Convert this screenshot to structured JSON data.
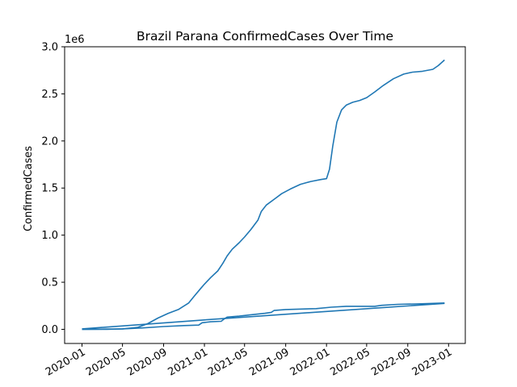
{
  "chart_data": {
    "type": "line",
    "title": "Brazil Parana ConfirmedCases Over Time",
    "xlabel": "",
    "ylabel": "ConfirmedCases",
    "y_offset_label": "1e6",
    "y_scale_multiplier": 1000000,
    "xlim": [
      "2019-11-10",
      "2023-02-20"
    ],
    "ylim": [
      -0.15,
      3.0
    ],
    "x_ticks": [
      {
        "date": "2020-01-01",
        "label": "2020-01"
      },
      {
        "date": "2020-05-01",
        "label": "2020-05"
      },
      {
        "date": "2020-09-01",
        "label": "2020-09"
      },
      {
        "date": "2021-01-01",
        "label": "2021-01"
      },
      {
        "date": "2021-05-01",
        "label": "2021-05"
      },
      {
        "date": "2021-09-01",
        "label": "2021-09"
      },
      {
        "date": "2022-01-01",
        "label": "2022-01"
      },
      {
        "date": "2022-05-01",
        "label": "2022-05"
      },
      {
        "date": "2022-09-01",
        "label": "2022-09"
      },
      {
        "date": "2023-01-01",
        "label": "2023-01"
      }
    ],
    "y_ticks": [
      {
        "value": 0.0,
        "label": "0.0"
      },
      {
        "value": 0.5,
        "label": "0.5"
      },
      {
        "value": 1.0,
        "label": "1.0"
      },
      {
        "value": 1.5,
        "label": "1.5"
      },
      {
        "value": 2.0,
        "label": "2.0"
      },
      {
        "value": 2.5,
        "label": "2.5"
      },
      {
        "value": 3.0,
        "label": "3.0"
      }
    ],
    "grid": false,
    "legend": "none",
    "line_color": "#1f77b4",
    "series": [
      {
        "points": [
          [
            "2020-01-01",
            0.0
          ],
          [
            "2020-03-15",
            0.0
          ],
          [
            "2020-05-01",
            0.005
          ],
          [
            "2020-06-15",
            0.02
          ],
          [
            "2020-07-15",
            0.06
          ],
          [
            "2020-08-15",
            0.12
          ],
          [
            "2020-09-15",
            0.17
          ],
          [
            "2020-10-15",
            0.21
          ],
          [
            "2020-11-15",
            0.28
          ],
          [
            "2020-12-01",
            0.35
          ],
          [
            "2020-12-20",
            0.43
          ],
          [
            "2021-01-01",
            0.48
          ],
          [
            "2021-01-20",
            0.55
          ],
          [
            "2021-02-10",
            0.62
          ],
          [
            "2021-02-25",
            0.7
          ],
          [
            "2021-03-10",
            0.78
          ],
          [
            "2021-03-25",
            0.85
          ],
          [
            "2021-04-15",
            0.92
          ],
          [
            "2021-05-01",
            0.98
          ],
          [
            "2021-05-20",
            1.06
          ],
          [
            "2021-06-10",
            1.16
          ],
          [
            "2021-06-20",
            1.25
          ],
          [
            "2021-07-05",
            1.32
          ],
          [
            "2021-08-01",
            1.39
          ],
          [
            "2021-08-20",
            1.44
          ],
          [
            "2021-09-15",
            1.49
          ],
          [
            "2021-10-15",
            1.54
          ],
          [
            "2021-11-15",
            1.57
          ],
          [
            "2021-12-15",
            1.59
          ],
          [
            "2022-01-01",
            1.6
          ],
          [
            "2022-01-10",
            1.7
          ],
          [
            "2022-01-20",
            1.95
          ],
          [
            "2022-02-01",
            2.2
          ],
          [
            "2022-02-15",
            2.33
          ],
          [
            "2022-03-01",
            2.38
          ],
          [
            "2022-03-20",
            2.41
          ],
          [
            "2022-04-10",
            2.43
          ],
          [
            "2022-05-01",
            2.46
          ],
          [
            "2022-05-25",
            2.52
          ],
          [
            "2022-06-20",
            2.59
          ],
          [
            "2022-07-20",
            2.66
          ],
          [
            "2022-08-20",
            2.71
          ],
          [
            "2022-09-15",
            2.73
          ],
          [
            "2022-10-15",
            2.74
          ],
          [
            "2022-11-15",
            2.76
          ],
          [
            "2022-12-01",
            2.8
          ],
          [
            "2022-12-20",
            2.86
          ]
        ]
      },
      {
        "points": [
          [
            "2020-01-01",
            0.0
          ],
          [
            "2020-05-01",
            0.005
          ],
          [
            "2020-07-01",
            0.015
          ],
          [
            "2020-09-01",
            0.03
          ],
          [
            "2020-11-01",
            0.04
          ],
          [
            "2020-12-15",
            0.045
          ],
          [
            "2020-12-25",
            0.07
          ],
          [
            "2021-01-20",
            0.08
          ],
          [
            "2021-02-20",
            0.085
          ],
          [
            "2021-03-01",
            0.11
          ],
          [
            "2021-03-10",
            0.13
          ],
          [
            "2021-04-15",
            0.14
          ],
          [
            "2021-05-20",
            0.155
          ],
          [
            "2021-07-01",
            0.17
          ],
          [
            "2021-07-20",
            0.18
          ],
          [
            "2021-07-28",
            0.2
          ],
          [
            "2021-09-01",
            0.21
          ],
          [
            "2021-12-01",
            0.22
          ],
          [
            "2022-01-15",
            0.235
          ],
          [
            "2022-03-01",
            0.245
          ],
          [
            "2022-05-01",
            0.245
          ],
          [
            "2022-05-25",
            0.245
          ],
          [
            "2022-06-15",
            0.255
          ],
          [
            "2022-08-01",
            0.265
          ],
          [
            "2022-10-01",
            0.27
          ],
          [
            "2022-11-15",
            0.275
          ],
          [
            "2022-12-20",
            0.28
          ]
        ]
      },
      {
        "points": [
          [
            "2020-01-01",
            0.005
          ],
          [
            "2021-01-01",
            0.1
          ],
          [
            "2022-01-01",
            0.19
          ],
          [
            "2022-12-20",
            0.275
          ]
        ]
      }
    ]
  }
}
